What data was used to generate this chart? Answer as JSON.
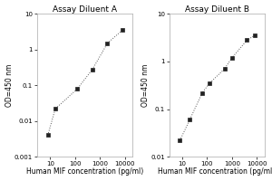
{
  "panel_a": {
    "title": "Assay Diluent A",
    "x": [
      8,
      16,
      125,
      500,
      2000,
      8000
    ],
    "y": [
      0.004,
      0.022,
      0.08,
      0.28,
      1.5,
      3.5
    ],
    "xlim": [
      3,
      20000
    ],
    "ylim": [
      0.001,
      10
    ],
    "xlabel": "Human MIF concentration (pg/ml)",
    "ylabel": "OD=450 nm",
    "xticks": [
      10,
      100,
      1000,
      10000
    ],
    "xticklabels": [
      "10",
      "100",
      "1000",
      "10000"
    ],
    "yticks": [
      0.001,
      0.01,
      0.1,
      1,
      10
    ],
    "yticklabels": [
      "0.001",
      "0.01",
      "0.1",
      "1",
      "10"
    ]
  },
  "panel_b": {
    "title": "Assay Diluent B",
    "x": [
      8,
      20,
      63,
      125,
      500,
      1000,
      4000,
      8000
    ],
    "y": [
      0.022,
      0.06,
      0.22,
      0.35,
      0.7,
      1.2,
      2.8,
      3.5
    ],
    "xlim": [
      3,
      20000
    ],
    "ylim": [
      0.01,
      10
    ],
    "xlabel": "Human MIF concentration (pg/ml)",
    "ylabel": "OD=450 nm",
    "xticks": [
      10,
      100,
      1000,
      10000
    ],
    "xticklabels": [
      "10",
      "100",
      "1000",
      "10000"
    ],
    "yticks": [
      0.01,
      0.1,
      1,
      10
    ],
    "yticklabels": [
      "0.01",
      "0.1",
      "1",
      "10"
    ]
  },
  "line_color": "#555555",
  "marker_color": "#222222",
  "bg_color": "#ffffff",
  "spine_color": "#aaaaaa",
  "title_fontsize": 6.5,
  "label_fontsize": 5.5,
  "tick_fontsize": 5
}
